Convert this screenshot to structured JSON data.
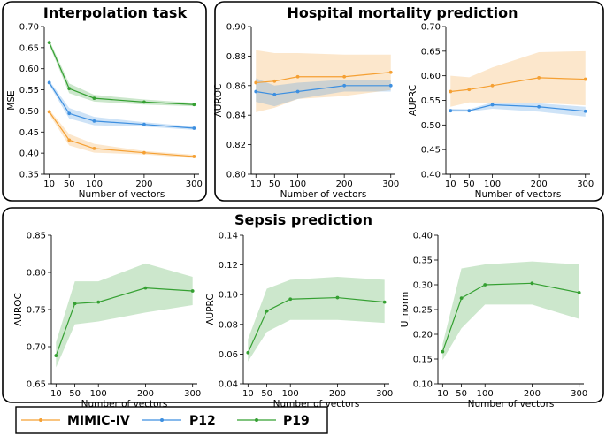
{
  "section_titles": {
    "interpolation": "Interpolation task",
    "mortality": "Hospital mortality prediction",
    "sepsis": "Sepsis prediction"
  },
  "colors": {
    "MIMIC-IV": "#f5a033",
    "P12": "#3d8fe0",
    "P19": "#35a032"
  },
  "legend": [
    "MIMIC-IV",
    "P12",
    "P19"
  ],
  "chart_data": [
    {
      "id": "interp-mse",
      "type": "line",
      "title": "Interpolation task",
      "xlabel": "Number of vectors",
      "ylabel": "MSE",
      "x": [
        10,
        50,
        100,
        200,
        300
      ],
      "xticks": [
        "10",
        "50",
        "100",
        "200",
        "300"
      ],
      "xlim": [
        0,
        310
      ],
      "ylim": [
        0.35,
        0.7
      ],
      "yticks": [
        "0.35",
        "0.40",
        "0.45",
        "0.50",
        "0.55",
        "0.60",
        "0.65",
        "0.70"
      ],
      "series": [
        {
          "name": "MIMIC-IV",
          "values": [
            0.498,
            0.431,
            0.411,
            0.401,
            0.392
          ],
          "lower": [
            0.492,
            0.418,
            0.401,
            0.397,
            0.388
          ],
          "upper": [
            0.503,
            0.445,
            0.422,
            0.405,
            0.396
          ]
        },
        {
          "name": "P12",
          "values": [
            0.567,
            0.494,
            0.476,
            0.468,
            0.459
          ],
          "lower": [
            0.562,
            0.482,
            0.466,
            0.463,
            0.455
          ],
          "upper": [
            0.572,
            0.507,
            0.486,
            0.473,
            0.463
          ]
        },
        {
          "name": "P19",
          "values": [
            0.662,
            0.553,
            0.53,
            0.521,
            0.515
          ],
          "lower": [
            0.656,
            0.542,
            0.522,
            0.515,
            0.511
          ],
          "upper": [
            0.668,
            0.565,
            0.538,
            0.527,
            0.519
          ]
        }
      ]
    },
    {
      "id": "mortality-auroc",
      "type": "line",
      "title": "",
      "xlabel": "Number of vectors",
      "ylabel": "AUROC",
      "x": [
        10,
        50,
        100,
        200,
        300
      ],
      "xticks": [
        "10",
        "50",
        "100",
        "200",
        "300"
      ],
      "xlim": [
        0,
        310
      ],
      "ylim": [
        0.8,
        0.9
      ],
      "yticks": [
        "0.80",
        "0.82",
        "0.84",
        "0.86",
        "0.88",
        "0.90"
      ],
      "series": [
        {
          "name": "MIMIC-IV",
          "values": [
            0.862,
            0.863,
            0.866,
            0.866,
            0.869
          ],
          "lower": [
            0.842,
            0.845,
            0.851,
            0.853,
            0.857
          ],
          "upper": [
            0.884,
            0.882,
            0.882,
            0.881,
            0.881
          ]
        },
        {
          "name": "P12",
          "values": [
            0.856,
            0.854,
            0.856,
            0.86,
            0.86
          ],
          "lower": [
            0.849,
            0.846,
            0.851,
            0.856,
            0.856
          ],
          "upper": [
            0.865,
            0.86,
            0.862,
            0.864,
            0.864
          ]
        }
      ]
    },
    {
      "id": "mortality-auprc",
      "type": "line",
      "title": "",
      "xlabel": "Number of vectors",
      "ylabel": "AUPRC",
      "x": [
        10,
        50,
        100,
        200,
        300
      ],
      "xticks": [
        "10",
        "50",
        "100",
        "200",
        "300"
      ],
      "xlim": [
        0,
        310
      ],
      "ylim": [
        0.4,
        0.7
      ],
      "yticks": [
        "0.40",
        "0.45",
        "0.50",
        "0.55",
        "0.60",
        "0.65",
        "0.70"
      ],
      "series": [
        {
          "name": "MIMIC-IV",
          "values": [
            0.568,
            0.572,
            0.58,
            0.596,
            0.593
          ],
          "lower": [
            0.537,
            0.546,
            0.545,
            0.545,
            0.54
          ],
          "upper": [
            0.6,
            0.597,
            0.617,
            0.648,
            0.65
          ]
        },
        {
          "name": "P12",
          "values": [
            0.529,
            0.529,
            0.541,
            0.537,
            0.528
          ],
          "lower": [
            0.527,
            0.527,
            0.533,
            0.527,
            0.517
          ],
          "upper": [
            0.533,
            0.532,
            0.546,
            0.544,
            0.537
          ]
        }
      ]
    },
    {
      "id": "sepsis-auroc",
      "type": "line",
      "title": "",
      "xlabel": "Number of vectors",
      "ylabel": "AUROC",
      "x": [
        10,
        50,
        100,
        200,
        300
      ],
      "xticks": [
        "10",
        "50",
        "100",
        "200",
        "300"
      ],
      "xlim": [
        0,
        310
      ],
      "ylim": [
        0.65,
        0.85
      ],
      "yticks": [
        "0.65",
        "0.70",
        "0.75",
        "0.80",
        "0.85"
      ],
      "series": [
        {
          "name": "P19",
          "values": [
            0.688,
            0.758,
            0.76,
            0.779,
            0.775
          ],
          "lower": [
            0.672,
            0.73,
            0.734,
            0.746,
            0.756
          ],
          "upper": [
            0.706,
            0.788,
            0.788,
            0.812,
            0.794
          ]
        }
      ]
    },
    {
      "id": "sepsis-auprc",
      "type": "line",
      "title": "",
      "xlabel": "Number of vectors",
      "ylabel": "AUPRC",
      "x": [
        10,
        50,
        100,
        200,
        300
      ],
      "xticks": [
        "10",
        "50",
        "100",
        "200",
        "300"
      ],
      "xlim": [
        0,
        310
      ],
      "ylim": [
        0.04,
        0.14
      ],
      "yticks": [
        "0.04",
        "0.06",
        "0.08",
        "0.10",
        "0.12",
        "0.14"
      ],
      "series": [
        {
          "name": "P19",
          "values": [
            0.061,
            0.089,
            0.097,
            0.098,
            0.095
          ],
          "lower": [
            0.055,
            0.075,
            0.083,
            0.083,
            0.081
          ],
          "upper": [
            0.07,
            0.104,
            0.11,
            0.112,
            0.11
          ]
        }
      ]
    },
    {
      "id": "sepsis-unorm",
      "type": "line",
      "title": "",
      "xlabel": "Number of vectors",
      "ylabel": "U_norm",
      "x": [
        10,
        50,
        100,
        200,
        300
      ],
      "xticks": [
        "10",
        "50",
        "100",
        "200",
        "300"
      ],
      "xlim": [
        0,
        310
      ],
      "ylim": [
        0.1,
        0.4
      ],
      "yticks": [
        "0.10",
        "0.15",
        "0.20",
        "0.25",
        "0.30",
        "0.35",
        "0.40"
      ],
      "series": [
        {
          "name": "P19",
          "values": [
            0.165,
            0.273,
            0.3,
            0.303,
            0.284
          ],
          "lower": [
            0.148,
            0.212,
            0.26,
            0.26,
            0.231
          ],
          "upper": [
            0.18,
            0.333,
            0.341,
            0.347,
            0.341
          ]
        }
      ]
    }
  ]
}
